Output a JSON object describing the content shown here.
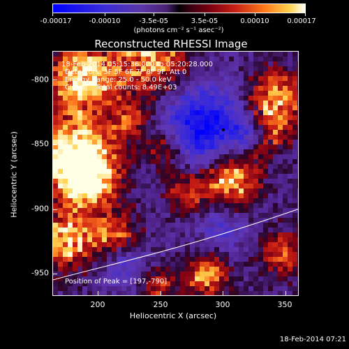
{
  "colorbar": {
    "ticks": [
      "-0.00017",
      "-0.00010",
      "-3.5e-05",
      "3.5e-05",
      "0.00010",
      "0.00017"
    ],
    "units": "(photons cm⁻² s⁻¹ asec⁻²)"
  },
  "plot": {
    "title": "Reconstructed RHESSI Image",
    "xlabel": "Heliocentric X (arcsec)",
    "ylabel": "Heliocentric Y (arcsec)",
    "xticks": [
      "200",
      "250",
      "300",
      "350"
    ],
    "yticks": [
      "-800",
      "-850",
      "-900",
      "-950"
    ],
    "annotations": {
      "time_range": "18-Feb-2014 05:15:36.000 to 05:20:28.000",
      "detectors": "Detectors: 3F 5F 6F 7F 8F 9F, Att 0",
      "energy": "Energy Range: 25.0 - 50.0 keV",
      "clean": "Clean     Total counts: 8.49E+03",
      "peak": "Position of Peak = [197,-790]"
    }
  },
  "footer": {
    "timestamp": "18-Feb-2014 07:21"
  },
  "colors": {
    "background": "#000000",
    "text": "#ffffff",
    "limb": "#ffffff"
  }
}
